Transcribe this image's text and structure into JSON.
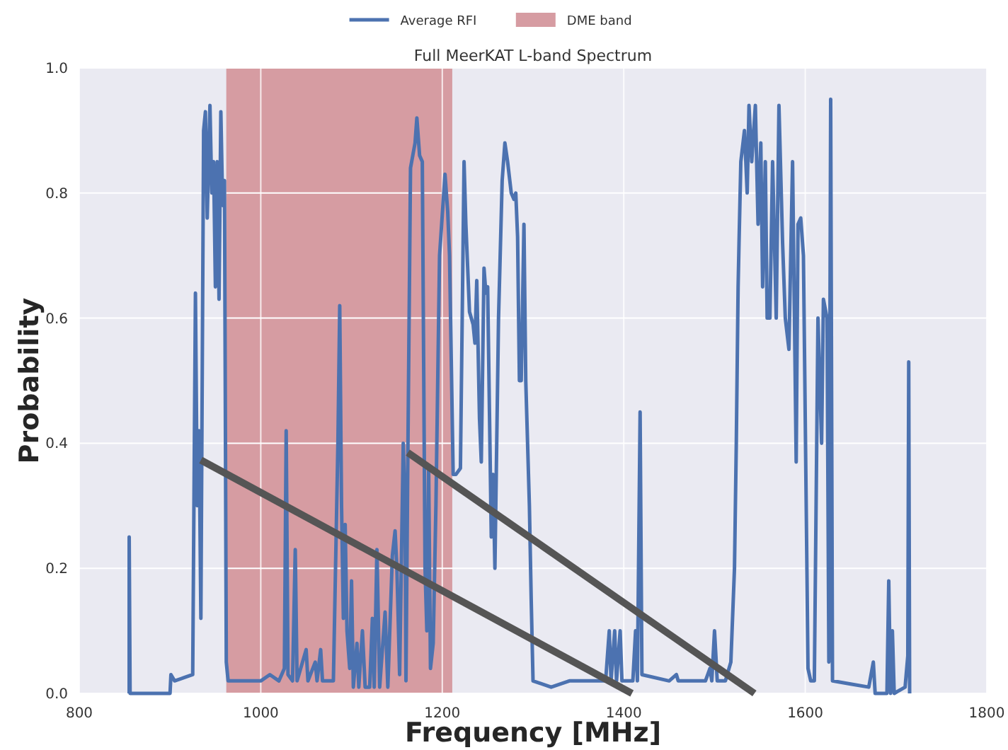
{
  "chart_data": {
    "type": "line",
    "title": "Full MeerKAT L-band Spectrum",
    "xlabel": "Frequency [MHz]",
    "ylabel": "Probability",
    "x": [
      855,
      855,
      856,
      900,
      901,
      905,
      915,
      925,
      928,
      930,
      932,
      934,
      937,
      939,
      941,
      944,
      946,
      948,
      950,
      952,
      954,
      956,
      958,
      960,
      962,
      964,
      970,
      990,
      1000,
      1010,
      1020,
      1026,
      1028,
      1030,
      1035,
      1038,
      1040,
      1050,
      1052,
      1060,
      1062,
      1066,
      1068,
      1080,
      1085,
      1087,
      1089,
      1091,
      1093,
      1095,
      1098,
      1100,
      1102,
      1106,
      1108,
      1112,
      1115,
      1120,
      1123,
      1125,
      1128,
      1131,
      1137,
      1140,
      1145,
      1148,
      1150,
      1153,
      1157,
      1159,
      1160,
      1162,
      1165,
      1170,
      1172,
      1175,
      1178,
      1181,
      1183,
      1185,
      1187,
      1190,
      1193,
      1197,
      1203,
      1206,
      1208,
      1212,
      1215,
      1220,
      1224,
      1226,
      1230,
      1234,
      1236,
      1238,
      1241,
      1243,
      1246,
      1248,
      1250,
      1252,
      1254,
      1256,
      1258,
      1262,
      1266,
      1269,
      1272,
      1276,
      1279,
      1281,
      1283,
      1285,
      1287,
      1290,
      1292,
      1296,
      1298,
      1300,
      1320,
      1340,
      1380,
      1384,
      1386,
      1390,
      1392,
      1396,
      1398,
      1410,
      1413,
      1415,
      1418,
      1420,
      1450,
      1458,
      1460,
      1490,
      1495,
      1497,
      1500,
      1503,
      1512,
      1518,
      1522,
      1524,
      1526,
      1527,
      1529,
      1533,
      1536,
      1538,
      1541,
      1545,
      1548,
      1551,
      1553,
      1556,
      1558,
      1561,
      1564,
      1568,
      1571,
      1575,
      1578,
      1582,
      1586,
      1590,
      1592,
      1595,
      1598,
      1603,
      1606,
      1610,
      1614,
      1618,
      1620,
      1624,
      1626,
      1628,
      1630,
      1650,
      1670,
      1675,
      1677,
      1690,
      1692,
      1694,
      1696,
      1698,
      1710,
      1713,
      1714,
      1715
    ],
    "series": [
      {
        "name": "Average RFI",
        "color": "#4c72b0",
        "values": [
          0,
          0.25,
          0,
          0,
          0.03,
          0.02,
          0.025,
          0.03,
          0.64,
          0.3,
          0.42,
          0.12,
          0.9,
          0.93,
          0.76,
          0.94,
          0.8,
          0.85,
          0.65,
          0.85,
          0.63,
          0.93,
          0.78,
          0.82,
          0.05,
          0.02,
          0.02,
          0.02,
          0.02,
          0.03,
          0.02,
          0.04,
          0.42,
          0.03,
          0.02,
          0.23,
          0.02,
          0.07,
          0.02,
          0.05,
          0.02,
          0.07,
          0.02,
          0.02,
          0.4,
          0.62,
          0.3,
          0.12,
          0.27,
          0.1,
          0.04,
          0.18,
          0.01,
          0.08,
          0.01,
          0.1,
          0.01,
          0.01,
          0.12,
          0.01,
          0.23,
          0.01,
          0.13,
          0.01,
          0.22,
          0.26,
          0.2,
          0.03,
          0.4,
          0.3,
          0.02,
          0.37,
          0.84,
          0.88,
          0.92,
          0.86,
          0.85,
          0.2,
          0.1,
          0.36,
          0.04,
          0.08,
          0.3,
          0.7,
          0.83,
          0.77,
          0.7,
          0.35,
          0.35,
          0.36,
          0.85,
          0.75,
          0.61,
          0.59,
          0.56,
          0.66,
          0.44,
          0.37,
          0.68,
          0.64,
          0.65,
          0.45,
          0.25,
          0.35,
          0.2,
          0.6,
          0.82,
          0.88,
          0.85,
          0.8,
          0.79,
          0.8,
          0.73,
          0.5,
          0.5,
          0.75,
          0.5,
          0.3,
          0.15,
          0.02,
          0.01,
          0.02,
          0.02,
          0.1,
          0.02,
          0.1,
          0.02,
          0.1,
          0.02,
          0.02,
          0.1,
          0.02,
          0.45,
          0.03,
          0.02,
          0.03,
          0.02,
          0.02,
          0.04,
          0.02,
          0.1,
          0.02,
          0.02,
          0.05,
          0.2,
          0.4,
          0.65,
          0.72,
          0.85,
          0.9,
          0.8,
          0.94,
          0.85,
          0.94,
          0.75,
          0.88,
          0.65,
          0.85,
          0.6,
          0.6,
          0.85,
          0.6,
          0.94,
          0.72,
          0.6,
          0.55,
          0.85,
          0.37,
          0.75,
          0.76,
          0.7,
          0.04,
          0.02,
          0.02,
          0.6,
          0.4,
          0.63,
          0.6,
          0.05,
          0.95,
          0.02,
          0.015,
          0.01,
          0.05,
          0,
          0,
          0.18,
          0,
          0.1,
          0,
          0.01,
          0.06,
          0.53,
          0
        ]
      },
      {
        "type": "line",
        "color": "#555555",
        "x": [
          934,
          1409
        ],
        "values": [
          0.373,
          0
        ]
      },
      {
        "type": "line",
        "color": "#555555",
        "x": [
          1162,
          1544
        ],
        "values": [
          0.385,
          0
        ]
      }
    ],
    "bands": [
      {
        "axis": "x",
        "from": 962,
        "to": 1211,
        "label": "DME band",
        "color": "#d69ca2"
      }
    ],
    "xlim": [
      800,
      1800
    ],
    "xticks": [
      800,
      1000,
      1200,
      1400,
      1600,
      1800
    ],
    "ylim": [
      0,
      1
    ],
    "yticks": [
      {
        "value": 0,
        "label": "0.0"
      },
      {
        "value": 0.2,
        "label": "0.2"
      },
      {
        "value": 0.4,
        "label": "0.4"
      },
      {
        "value": 0.6,
        "label": "0.6"
      },
      {
        "value": 0.8,
        "label": "0.8"
      },
      {
        "value": 1,
        "label": "1.0"
      }
    ],
    "grid": true,
    "legend": "top"
  }
}
